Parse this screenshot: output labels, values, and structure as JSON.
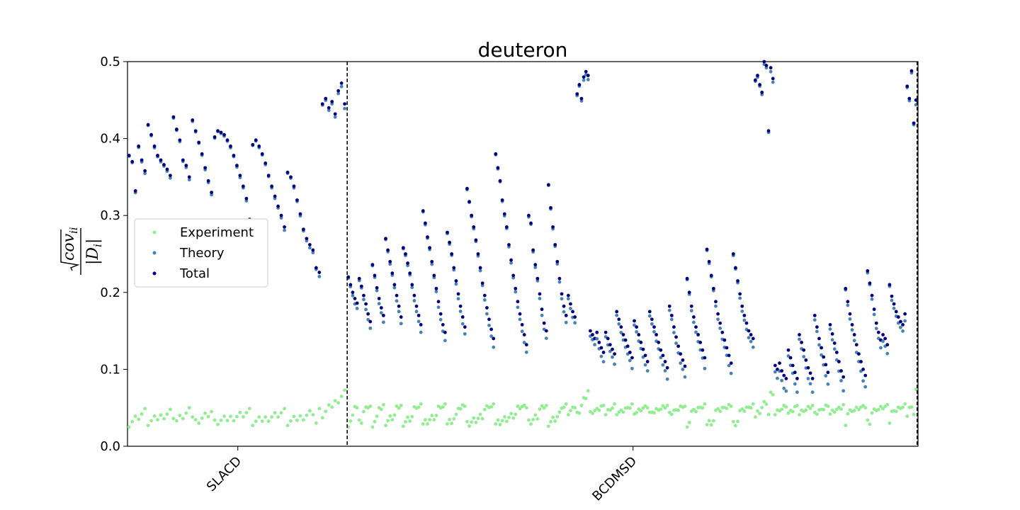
{
  "chart_data": {
    "type": "scatter",
    "title": "deuteron",
    "ylabel_tex": "sqrt(cov_ii) / |D_i|",
    "ylim": [
      0,
      0.5
    ],
    "xlim": [
      0,
      860
    ],
    "y_ticks": [
      "0.0",
      "0.1",
      "0.2",
      "0.3",
      "0.4",
      "0.5"
    ],
    "x_tick_labels": [
      {
        "label": "SLACD",
        "x": 120
      },
      {
        "label": "BCDMSD",
        "x": 550
      }
    ],
    "dataset_boundaries": [
      239,
      859
    ],
    "legend": {
      "placement": "center-left"
    },
    "series": [
      {
        "name": "Experiment",
        "color": "#90ee90"
      },
      {
        "name": "Theory",
        "color": "#4682b4"
      },
      {
        "name": "Total",
        "color": "#000080"
      }
    ],
    "segments": [
      {
        "x0": 0,
        "x1": 238,
        "groups": [
          [
            0.378,
            0.37,
            0.332,
            0.39,
            0.372,
            0.358
          ],
          [
            0.418,
            0.405,
            0.39,
            0.378,
            0.372,
            0.366,
            0.36,
            0.352
          ],
          [
            0.428,
            0.412,
            0.398,
            0.372,
            0.365,
            0.35
          ],
          [
            0.424,
            0.41,
            0.395,
            0.38,
            0.362,
            0.345,
            0.33
          ],
          [
            0.402,
            0.41,
            0.408,
            0.405,
            0.398,
            0.39,
            0.378,
            0.365,
            0.352,
            0.338,
            0.322,
            0.295
          ],
          [
            0.392,
            0.398,
            0.39,
            0.38,
            0.368,
            0.352,
            0.338,
            0.325,
            0.312,
            0.3,
            0.285
          ],
          [
            0.356,
            0.35,
            0.338,
            0.32,
            0.302,
            0.282,
            0.27,
            0.262,
            0.255
          ],
          [
            0.232,
            0.226
          ],
          [
            0.445,
            0.452,
            0.44,
            0.448,
            0.432,
            0.462,
            0.472,
            0.445
          ]
        ]
      },
      {
        "x0": 239,
        "x1": 859,
        "groups": [
          [
            0.22,
            0.21,
            0.2,
            0.192,
            0.186
          ],
          [
            0.218,
            0.208,
            0.196,
            0.185,
            0.172,
            0.162
          ],
          [
            0.236,
            0.222,
            0.206,
            0.192,
            0.18,
            0.17
          ],
          [
            0.27,
            0.255,
            0.24,
            0.225,
            0.21,
            0.196,
            0.182,
            0.168
          ],
          [
            0.258,
            0.25,
            0.238,
            0.225,
            0.21,
            0.196,
            0.182,
            0.17,
            0.158
          ],
          [
            0.306,
            0.29,
            0.272,
            0.258,
            0.24,
            0.222,
            0.205,
            0.188,
            0.172,
            0.158,
            0.148
          ],
          [
            0.278,
            0.265,
            0.25,
            0.232,
            0.215,
            0.198,
            0.182,
            0.168,
            0.155
          ],
          [
            0.335,
            0.318,
            0.3,
            0.285,
            0.268,
            0.25,
            0.232,
            0.212,
            0.196,
            0.18,
            0.165,
            0.152,
            0.14
          ],
          [
            0.38,
            0.362,
            0.345,
            0.32,
            0.302,
            0.285,
            0.262,
            0.242,
            0.222,
            0.205,
            0.188,
            0.172,
            0.158,
            0.145,
            0.132
          ],
          [
            0.3,
            0.29,
            0.255,
            0.236,
            0.218,
            0.198,
            0.178,
            0.16,
            0.15
          ],
          [
            0.34,
            0.31,
            0.285,
            0.262,
            0.24,
            0.218,
            0.198,
            0.182,
            0.17
          ],
          [
            0.196,
            0.185,
            0.175,
            0.168
          ],
          [
            0.458,
            0.47,
            0.452,
            0.48,
            0.487,
            0.482
          ],
          [
            0.15,
            0.145,
            0.14,
            0.148,
            0.135,
            0.128,
            0.122
          ],
          [
            0.148,
            0.14,
            0.132,
            0.126,
            0.12
          ],
          [
            0.175,
            0.165,
            0.155,
            0.145,
            0.138,
            0.13,
            0.122,
            0.115
          ],
          [
            0.163,
            0.155,
            0.145,
            0.135,
            0.126,
            0.118,
            0.11
          ],
          [
            0.175,
            0.165,
            0.155,
            0.145,
            0.135,
            0.125,
            0.118,
            0.11,
            0.102
          ],
          [
            0.182,
            0.17,
            0.155,
            0.142,
            0.13,
            0.12,
            0.112,
            0.104
          ],
          [
            0.218,
            0.2,
            0.182,
            0.168,
            0.155,
            0.145,
            0.135,
            0.125,
            0.115
          ],
          [
            0.256,
            0.24,
            0.222,
            0.205,
            0.188,
            0.172,
            0.16,
            0.148,
            0.138,
            0.128,
            0.118,
            0.108
          ],
          [
            0.25,
            0.232,
            0.215,
            0.198,
            0.182,
            0.17,
            0.16,
            0.15,
            0.145,
            0.14
          ],
          [
            0.476,
            0.482,
            0.47,
            0.46,
            0.5,
            0.495,
            0.41,
            0.492,
            0.478
          ],
          [
            0.105,
            0.1,
            0.108,
            0.098,
            0.092,
            0.088
          ],
          [
            0.125,
            0.115,
            0.105,
            0.096,
            0.088
          ],
          [
            0.145,
            0.135,
            0.125,
            0.112,
            0.102,
            0.095,
            0.088
          ],
          [
            0.17,
            0.155,
            0.14,
            0.128,
            0.116,
            0.106,
            0.096
          ],
          [
            0.158,
            0.146,
            0.134,
            0.122,
            0.11,
            0.098,
            0.09
          ],
          [
            0.205,
            0.188,
            0.172,
            0.158,
            0.145,
            0.132,
            0.12,
            0.11,
            0.1,
            0.092
          ],
          [
            0.228,
            0.212,
            0.196,
            0.178,
            0.16,
            0.148,
            0.138,
            0.145,
            0.14,
            0.132
          ],
          [
            0.21,
            0.195,
            0.185,
            0.175,
            0.168,
            0.162,
            0.158,
            0.172
          ],
          [
            0.468,
            0.452,
            0.488,
            0.42,
            0.45
          ]
        ]
      }
    ]
  }
}
